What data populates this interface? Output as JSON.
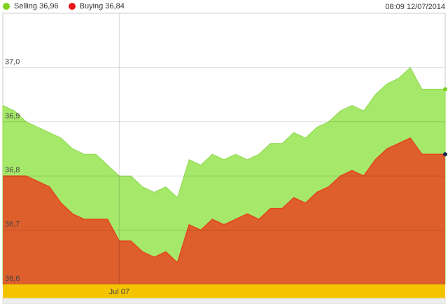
{
  "legend": {
    "selling_label": "Selling 36,96",
    "buying_label": "Buying 36,84"
  },
  "timestamp": "08:09 12/07/2014",
  "colors": {
    "selling": "#a6e86a",
    "selling_dot": "#7ed321",
    "buying": "#de5e2c",
    "buying_line": "#e2461e",
    "buying_dot": "#e8141a",
    "xband": "#f5c400"
  },
  "chart_data": {
    "type": "area",
    "title": "",
    "xlabel": "",
    "ylabel": "",
    "ylim": [
      36.6,
      37.1
    ],
    "yticks": [
      {
        "value": 36.6,
        "label": "36,6"
      },
      {
        "value": 36.7,
        "label": "36,7"
      },
      {
        "value": 36.8,
        "label": "36,8"
      },
      {
        "value": 36.9,
        "label": "36,9"
      },
      {
        "value": 37.0,
        "label": "37,0"
      }
    ],
    "xticks": [
      {
        "index": 10,
        "label": "Jul 07"
      }
    ],
    "grid": true,
    "legend_position": "top-left",
    "series": [
      {
        "name": "Selling",
        "values": [
          36.93,
          36.92,
          36.9,
          36.89,
          36.88,
          36.87,
          36.85,
          36.84,
          36.84,
          36.82,
          36.8,
          36.8,
          36.78,
          36.77,
          36.78,
          36.76,
          36.83,
          36.82,
          36.84,
          36.83,
          36.84,
          36.83,
          36.84,
          36.86,
          36.86,
          36.88,
          36.87,
          36.89,
          36.9,
          36.92,
          36.93,
          36.92,
          36.95,
          36.97,
          36.98,
          37.0,
          36.96,
          36.96,
          36.96
        ]
      },
      {
        "name": "Buying",
        "values": [
          36.8,
          36.8,
          36.8,
          36.79,
          36.78,
          36.75,
          36.73,
          36.72,
          36.72,
          36.72,
          36.68,
          36.68,
          36.66,
          36.65,
          36.66,
          36.64,
          36.71,
          36.7,
          36.72,
          36.71,
          36.72,
          36.73,
          36.72,
          36.74,
          36.74,
          36.76,
          36.75,
          36.77,
          36.78,
          36.8,
          36.81,
          36.8,
          36.83,
          36.85,
          36.86,
          36.87,
          36.84,
          36.84,
          36.84
        ]
      }
    ]
  }
}
